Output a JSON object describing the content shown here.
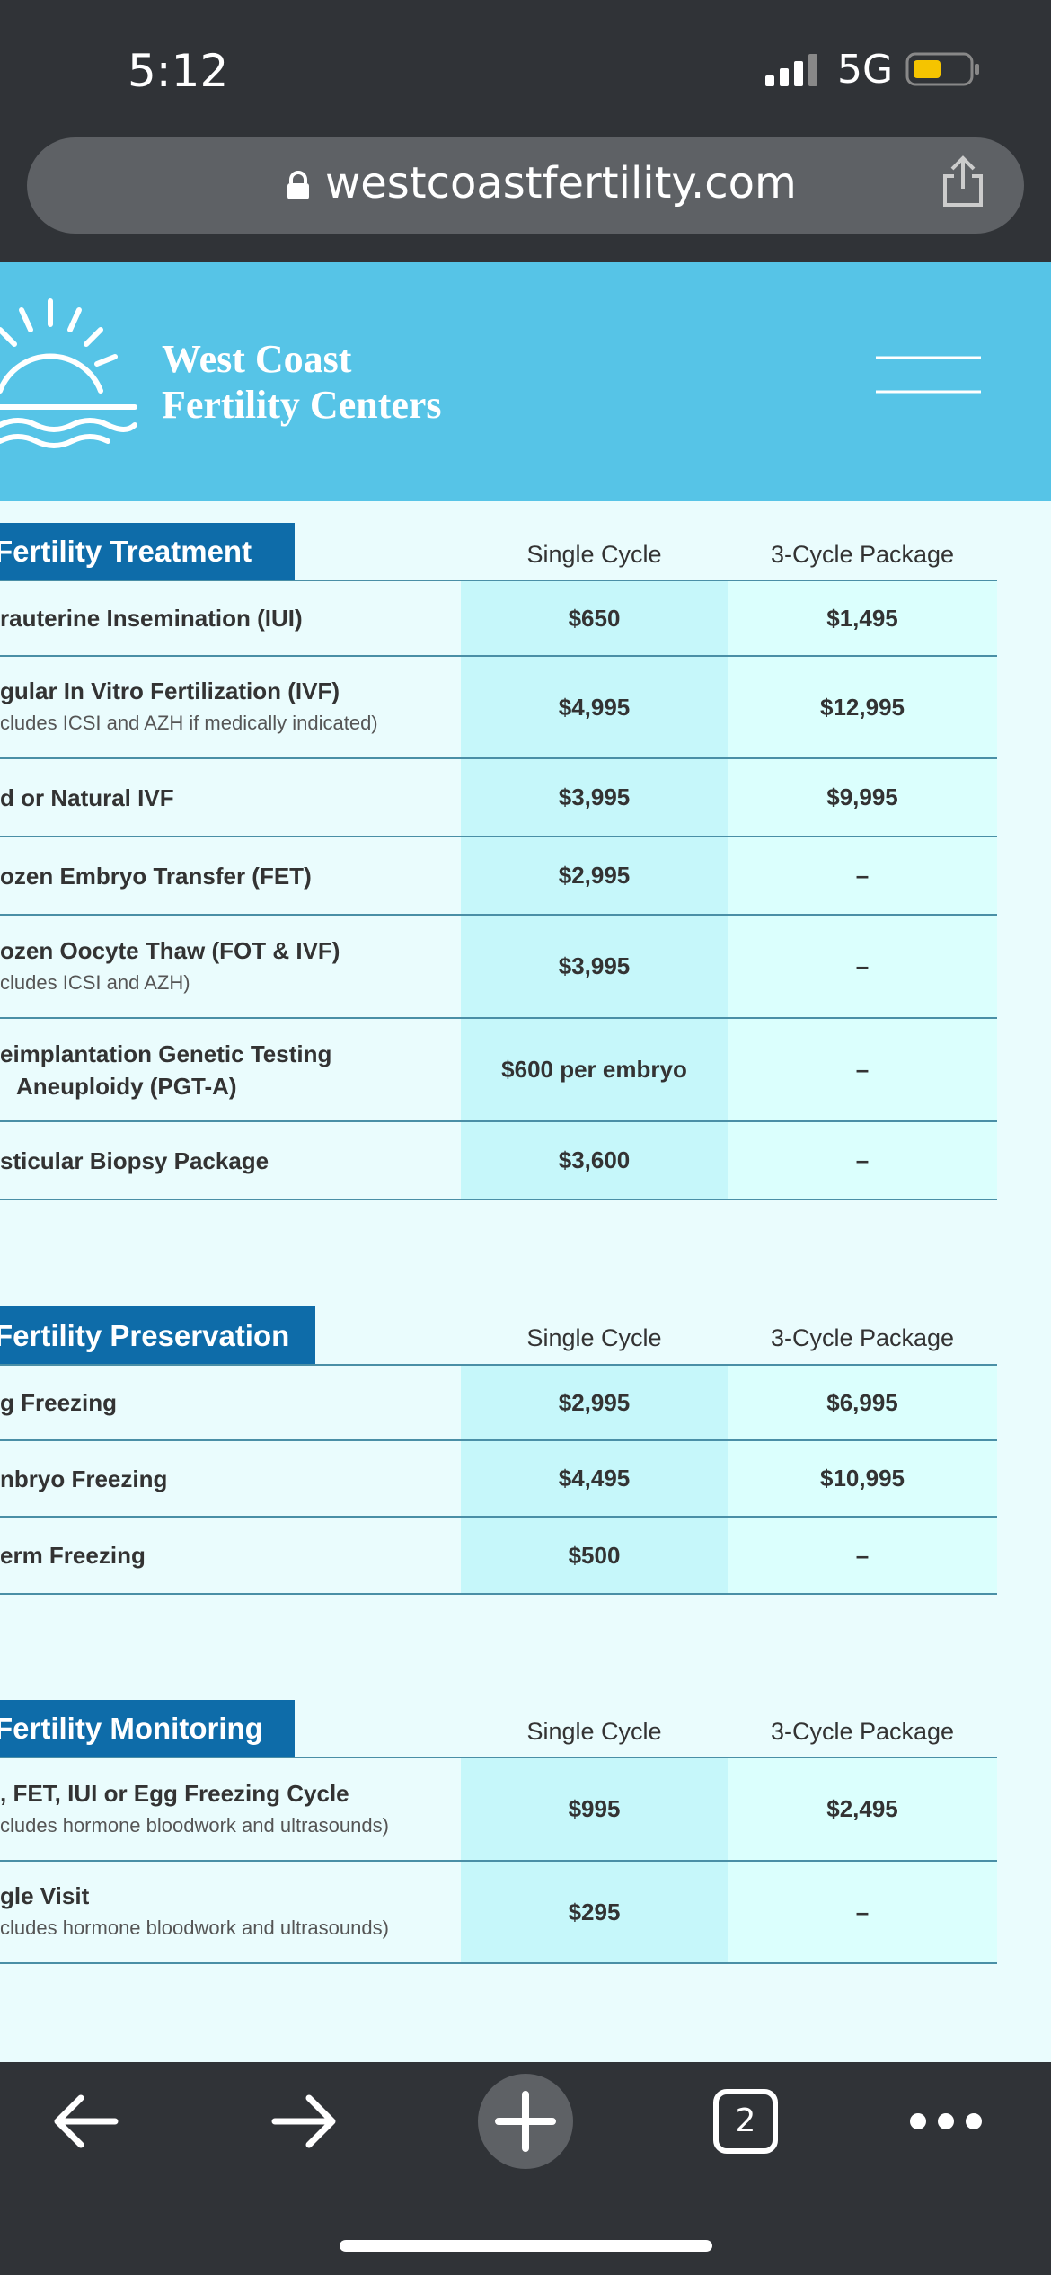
{
  "status_bar": {
    "time": "5:12",
    "network": "5G"
  },
  "browser": {
    "url": "westcoastfertility.com",
    "tab_count": "2"
  },
  "header": {
    "logo_line1": "West Coast",
    "logo_line2": "Fertility Centers"
  },
  "sections": [
    {
      "title": "Fertility Treatment",
      "columns": [
        "Single Cycle",
        "3-Cycle Package"
      ],
      "rows": [
        {
          "label": [
            "rauterine Insemination (IUI)"
          ],
          "single": "$650",
          "package": "$1,495"
        },
        {
          "label": [
            "gular In Vitro Fertilization (IVF)"
          ],
          "note": "cludes ICSI and AZH if medically indicated)",
          "single": "$4,995",
          "package": "$12,995"
        },
        {
          "label": [
            "d or Natural IVF"
          ],
          "single": "$3,995",
          "package": "$9,995"
        },
        {
          "label": [
            "ozen Embryo Transfer (FET)"
          ],
          "single": "$2,995",
          "package": "–"
        },
        {
          "label": [
            "ozen Oocyte Thaw (FOT & IVF)"
          ],
          "note": "cludes ICSI and AZH)",
          "single": "$3,995",
          "package": "–"
        },
        {
          "label": [
            "eimplantation Genetic Testing",
            "Aneuploidy (PGT-A)"
          ],
          "single": "$600 per embryo",
          "package": "–"
        },
        {
          "label": [
            "sticular Biopsy Package"
          ],
          "single": "$3,600",
          "package": "–"
        }
      ]
    },
    {
      "title": "Fertility Preservation",
      "columns": [
        "Single Cycle",
        "3-Cycle Package"
      ],
      "rows": [
        {
          "label": [
            "g Freezing"
          ],
          "single": "$2,995",
          "package": "$6,995"
        },
        {
          "label": [
            "nbryo Freezing"
          ],
          "single": "$4,495",
          "package": "$10,995"
        },
        {
          "label": [
            "erm Freezing"
          ],
          "single": "$500",
          "package": "–"
        }
      ]
    },
    {
      "title": "Fertility Monitoring",
      "columns": [
        "Single Cycle",
        "3-Cycle Package"
      ],
      "rows": [
        {
          "label": [
            ", FET, IUI or Egg Freezing Cycle"
          ],
          "note": "cludes hormone bloodwork and ultrasounds)",
          "single": "$995",
          "package": "$2,495"
        },
        {
          "label": [
            "gle Visit"
          ],
          "note": "cludes hormone bloodwork and ultrasounds)",
          "single": "$295",
          "package": "–"
        }
      ]
    }
  ]
}
